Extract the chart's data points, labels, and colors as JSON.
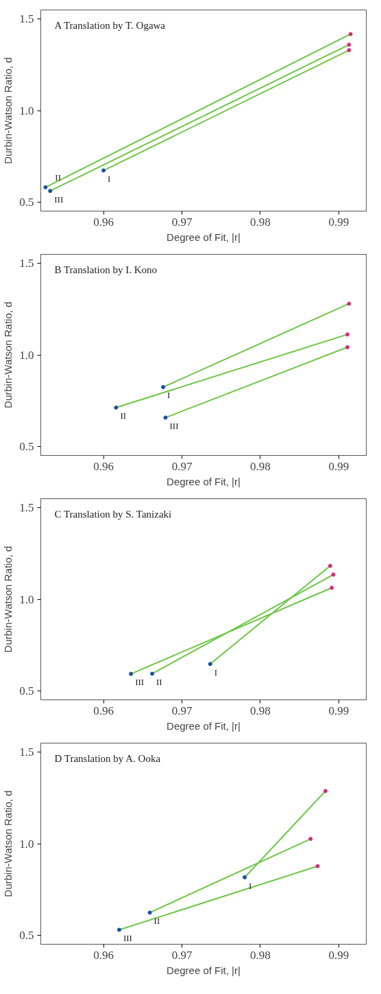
{
  "chart_data": [
    {
      "type": "line",
      "title": "A Translation by T. Ogawa",
      "xlabel": "Degree of Fit, |r|",
      "ylabel": "Durbin-Watson Ratio, d",
      "xlim": [
        0.952,
        0.9935
      ],
      "ylim": [
        0.45,
        1.55
      ],
      "xticks": [
        0.96,
        0.97,
        0.98,
        0.99
      ],
      "yticks": [
        {
          "value": 0.5,
          "label": "0.5"
        },
        {
          "value": 1.0,
          "label": "1.0"
        },
        {
          "value": 1.5,
          "label": "1.5"
        }
      ],
      "marker": "circle",
      "grid": false,
      "series": [
        {
          "name": "I",
          "color": "#6cc644",
          "colors": [
            "#1a4fa0",
            "#d0307a"
          ],
          "x": [
            0.96,
            0.9913
          ],
          "values": [
            0.672,
            1.33
          ]
        },
        {
          "name": "II",
          "color": "#6cc644",
          "colors": [
            "#1a4fa0",
            "#d0307a"
          ],
          "x": [
            0.9526,
            0.9915
          ],
          "values": [
            0.58,
            1.418
          ]
        },
        {
          "name": "III",
          "color": "#6cc644",
          "colors": [
            "#1a4fa0",
            "#d0307a"
          ],
          "x": [
            0.9532,
            0.9913
          ],
          "values": [
            0.56,
            1.36
          ]
        }
      ]
    },
    {
      "type": "line",
      "title": "B Translation by I. Kono",
      "xlabel": "Degree of Fit, |r|",
      "ylabel": "Durbin-Watson Ratio, d",
      "xlim": [
        0.952,
        0.9935
      ],
      "ylim": [
        0.45,
        1.55
      ],
      "xticks": [
        0.96,
        0.97,
        0.98,
        0.99
      ],
      "yticks": [
        {
          "value": 0.5,
          "label": "0.5"
        },
        {
          "value": 1.0,
          "label": "1.0"
        },
        {
          "value": 1.5,
          "label": "1.5"
        }
      ],
      "marker": "circle",
      "grid": false,
      "series": [
        {
          "name": "I",
          "color": "#6cc644",
          "colors": [
            "#1a4fa0",
            "#d0307a"
          ],
          "x": [
            0.9676,
            0.9913
          ],
          "values": [
            0.824,
            1.28
          ]
        },
        {
          "name": "II",
          "color": "#6cc644",
          "colors": [
            "#1a4fa0",
            "#d0307a"
          ],
          "x": [
            0.9616,
            0.9911
          ],
          "values": [
            0.712,
            1.112
          ]
        },
        {
          "name": "III",
          "color": "#6cc644",
          "colors": [
            "#1a4fa0",
            "#d0307a"
          ],
          "x": [
            0.9679,
            0.9911
          ],
          "values": [
            0.657,
            1.042
          ]
        }
      ]
    },
    {
      "type": "line",
      "title": "C Translation by S. Tanizaki",
      "xlabel": "Degree of Fit, |r|",
      "ylabel": "Durbin-Watson Ratio, d",
      "xlim": [
        0.952,
        0.9935
      ],
      "ylim": [
        0.45,
        1.55
      ],
      "xticks": [
        0.96,
        0.97,
        0.98,
        0.99
      ],
      "yticks": [
        {
          "value": 0.5,
          "label": "0.5"
        },
        {
          "value": 1.0,
          "label": "1.0"
        },
        {
          "value": 1.5,
          "label": "1.5"
        }
      ],
      "marker": "circle",
      "grid": false,
      "series": [
        {
          "name": "I",
          "color": "#6cc644",
          "colors": [
            "#1a4fa0",
            "#d0307a"
          ],
          "x": [
            0.9736,
            0.9889
          ],
          "values": [
            0.646,
            1.183
          ]
        },
        {
          "name": "II",
          "color": "#6cc644",
          "colors": [
            "#1a4fa0",
            "#d0307a"
          ],
          "x": [
            0.9662,
            0.9893
          ],
          "values": [
            0.593,
            1.135
          ]
        },
        {
          "name": "III",
          "color": "#6cc644",
          "colors": [
            "#1a4fa0",
            "#d0307a"
          ],
          "x": [
            0.9635,
            0.9891
          ],
          "values": [
            0.592,
            1.063
          ]
        }
      ]
    },
    {
      "type": "line",
      "title": "D Translation by A. Ooka",
      "xlabel": "Degree of Fit, |r|",
      "ylabel": "Durbin-Watson Ratio, d",
      "xlim": [
        0.952,
        0.9935
      ],
      "ylim": [
        0.45,
        1.55
      ],
      "xticks": [
        0.96,
        0.97,
        0.98,
        0.99
      ],
      "yticks": [
        {
          "value": 0.5,
          "label": "0.5"
        },
        {
          "value": 1.0,
          "label": "1.0"
        },
        {
          "value": 1.5,
          "label": "1.5"
        }
      ],
      "marker": "circle",
      "grid": false,
      "series": [
        {
          "name": "I",
          "color": "#6cc644",
          "colors": [
            "#1a4fa0",
            "#d0307a"
          ],
          "x": [
            0.978,
            0.9883
          ],
          "values": [
            0.816,
            1.288
          ]
        },
        {
          "name": "II",
          "color": "#6cc644",
          "colors": [
            "#1a4fa0",
            "#d0307a"
          ],
          "x": [
            0.9659,
            0.9864
          ],
          "values": [
            0.623,
            1.026
          ]
        },
        {
          "name": "III",
          "color": "#6cc644",
          "colors": [
            "#1a4fa0",
            "#d0307a"
          ],
          "x": [
            0.962,
            0.9873
          ],
          "values": [
            0.529,
            0.877
          ]
        }
      ]
    }
  ]
}
